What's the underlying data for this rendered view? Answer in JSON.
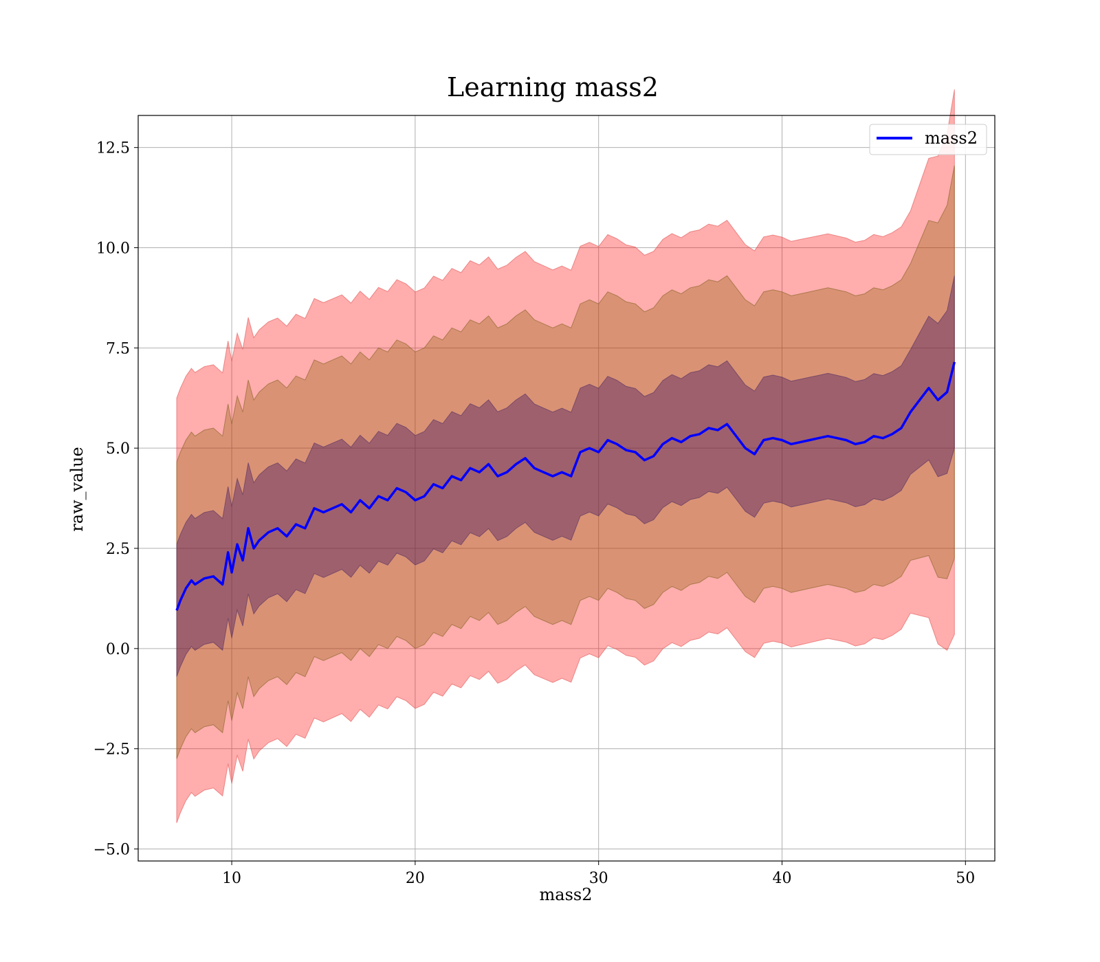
{
  "chart_data": {
    "type": "area",
    "title": "Learning mass2",
    "xlabel": "mass2",
    "ylabel": "raw_value",
    "xlim": [
      4.9,
      51.6
    ],
    "ylim": [
      -5.3,
      13.3
    ],
    "xticks": [
      10,
      20,
      30,
      40,
      50
    ],
    "xtick_labels": [
      "10",
      "20",
      "30",
      "40",
      "50"
    ],
    "yticks": [
      -5.0,
      -2.5,
      0.0,
      2.5,
      5.0,
      7.5,
      10.0,
      12.5
    ],
    "ytick_labels": [
      "−5.0",
      "−2.5",
      "0.0",
      "2.5",
      "5.0",
      "7.5",
      "10.0",
      "12.5"
    ],
    "grid": true,
    "legend": {
      "position": "upper-right",
      "entries": [
        "mass2"
      ]
    },
    "series": [
      {
        "name": "mass2",
        "color": "#0000ff",
        "x": [
          7.0,
          7.2,
          7.5,
          7.8,
          8.0,
          8.5,
          9.0,
          9.5,
          9.8,
          10.0,
          10.3,
          10.6,
          10.9,
          11.2,
          11.5,
          12.0,
          12.5,
          13.0,
          13.5,
          14.0,
          14.5,
          15.0,
          15.5,
          16.0,
          16.5,
          17.0,
          17.5,
          18.0,
          18.5,
          19.0,
          19.5,
          20.0,
          20.5,
          21.0,
          21.5,
          22.0,
          22.5,
          23.0,
          23.5,
          24.0,
          24.5,
          25.0,
          25.5,
          26.0,
          26.5,
          27.0,
          27.5,
          28.0,
          28.5,
          29.0,
          29.5,
          30.0,
          30.5,
          31.0,
          31.5,
          32.0,
          32.5,
          33.0,
          33.5,
          34.0,
          34.5,
          35.0,
          35.5,
          36.0,
          36.5,
          37.0,
          37.5,
          38.0,
          38.5,
          39.0,
          39.5,
          40.0,
          40.5,
          41.0,
          41.5,
          42.0,
          42.5,
          43.0,
          43.5,
          44.0,
          44.5,
          45.0,
          45.5,
          46.0,
          46.5,
          47.0,
          47.5,
          48.0,
          48.5,
          49.0,
          49.4
        ],
        "values": [
          0.95,
          1.2,
          1.5,
          1.7,
          1.6,
          1.75,
          1.8,
          1.6,
          2.4,
          1.9,
          2.6,
          2.2,
          3.0,
          2.5,
          2.7,
          2.9,
          3.0,
          2.8,
          3.1,
          3.0,
          3.5,
          3.4,
          3.5,
          3.6,
          3.4,
          3.7,
          3.5,
          3.8,
          3.7,
          4.0,
          3.9,
          3.7,
          3.8,
          4.1,
          4.0,
          4.3,
          4.2,
          4.5,
          4.4,
          4.6,
          4.3,
          4.4,
          4.6,
          4.75,
          4.5,
          4.4,
          4.3,
          4.4,
          4.3,
          4.9,
          5.0,
          4.9,
          5.2,
          5.1,
          4.95,
          4.9,
          4.7,
          4.8,
          5.1,
          5.25,
          5.15,
          5.3,
          5.35,
          5.5,
          5.45,
          5.6,
          5.3,
          5.0,
          4.85,
          5.2,
          5.25,
          5.2,
          5.1,
          5.15,
          5.2,
          5.25,
          5.3,
          5.25,
          5.2,
          5.1,
          5.15,
          5.3,
          5.25,
          5.35,
          5.5,
          5.9,
          6.2,
          6.5,
          6.2,
          6.4,
          7.15
        ]
      }
    ],
    "bands": [
      {
        "sigma": 3,
        "offset": 5.3,
        "offset_end": 5.0,
        "fill": "#ff0000",
        "opacity": 0.32,
        "edge": "#e05050"
      },
      {
        "sigma": 2,
        "offset": 3.7,
        "offset_end": 3.7,
        "fill": "#8b5a00",
        "opacity": 0.32,
        "edge": "#806020"
      },
      {
        "sigma": 1,
        "offset": 1.65,
        "offset_end": 1.55,
        "fill": "#401060",
        "opacity": 0.38,
        "edge": "#503060"
      }
    ]
  }
}
